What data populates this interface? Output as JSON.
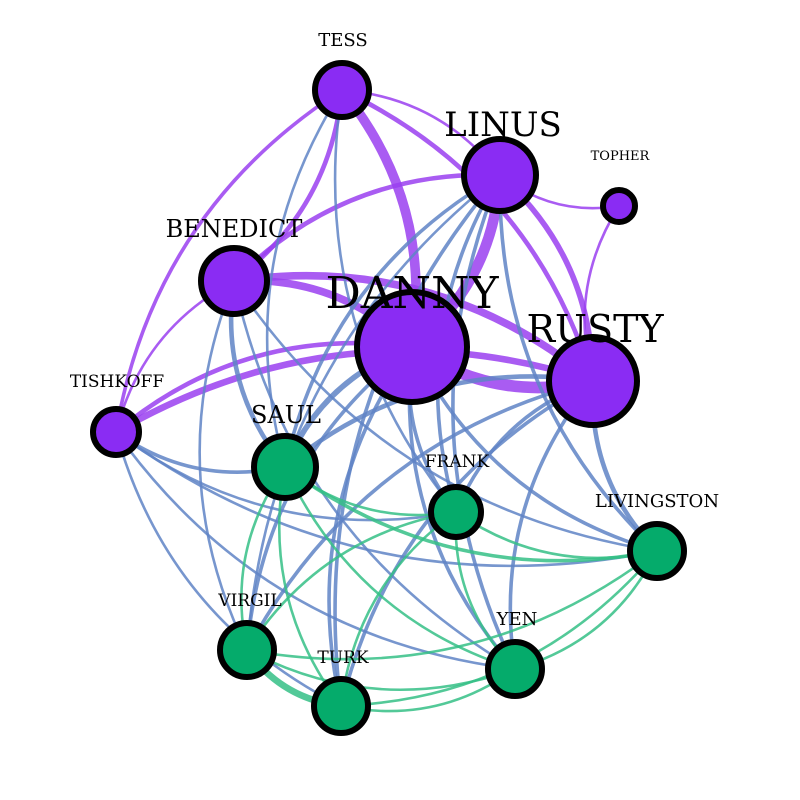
{
  "colors": {
    "group_a": "#8a2cf3",
    "group_b": "#05ab6b",
    "edge_a": "#9a40f0",
    "edge_b": "#35bf86",
    "edge_mixed": "#5f84c6",
    "outline": "#000000"
  },
  "nodes": [
    {
      "id": "danny",
      "label": "DANNY",
      "group": "a"
    },
    {
      "id": "rusty",
      "label": "RUSTY",
      "group": "a"
    },
    {
      "id": "linus",
      "label": "LINUS",
      "group": "a"
    },
    {
      "id": "benedict",
      "label": "BENEDICT",
      "group": "a"
    },
    {
      "id": "tess",
      "label": "TESS",
      "group": "a"
    },
    {
      "id": "tishkoff",
      "label": "TISHKOFF",
      "group": "a"
    },
    {
      "id": "topher",
      "label": "TOPHER",
      "group": "a"
    },
    {
      "id": "saul",
      "label": "SAUL",
      "group": "b"
    },
    {
      "id": "frank",
      "label": "FRANK",
      "group": "b"
    },
    {
      "id": "livingston",
      "label": "LIVINGSTON",
      "group": "b"
    },
    {
      "id": "virgil",
      "label": "VIRGIL",
      "group": "b"
    },
    {
      "id": "turk",
      "label": "TURK",
      "group": "b"
    },
    {
      "id": "yen",
      "label": "YEN",
      "group": "b"
    }
  ],
  "edges": [
    {
      "source": "danny",
      "target": "rusty",
      "weight": 10
    },
    {
      "source": "danny",
      "target": "linus",
      "weight": 9
    },
    {
      "source": "danny",
      "target": "tess",
      "weight": 8
    },
    {
      "source": "danny",
      "target": "benedict",
      "weight": 6
    },
    {
      "source": "danny",
      "target": "tishkoff",
      "weight": 3
    },
    {
      "source": "danny",
      "target": "saul",
      "weight": 4
    },
    {
      "source": "danny",
      "target": "frank",
      "weight": 2
    },
    {
      "source": "danny",
      "target": "livingston",
      "weight": 2
    },
    {
      "source": "danny",
      "target": "virgil",
      "weight": 2
    },
    {
      "source": "danny",
      "target": "turk",
      "weight": 2
    },
    {
      "source": "danny",
      "target": "yen",
      "weight": 2
    },
    {
      "source": "rusty",
      "target": "linus",
      "weight": 4
    },
    {
      "source": "rusty",
      "target": "benedict",
      "weight": 6
    },
    {
      "source": "rusty",
      "target": "tess",
      "weight": 3
    },
    {
      "source": "rusty",
      "target": "tishkoff",
      "weight": 5
    },
    {
      "source": "rusty",
      "target": "saul",
      "weight": 3
    },
    {
      "source": "rusty",
      "target": "frank",
      "weight": 2
    },
    {
      "source": "rusty",
      "target": "livingston",
      "weight": 3
    },
    {
      "source": "rusty",
      "target": "virgil",
      "weight": 2
    },
    {
      "source": "rusty",
      "target": "turk",
      "weight": 2
    },
    {
      "source": "rusty",
      "target": "yen",
      "weight": 2
    },
    {
      "source": "linus",
      "target": "benedict",
      "weight": 3
    },
    {
      "source": "linus",
      "target": "topher",
      "weight": 1
    },
    {
      "source": "linus",
      "target": "tess",
      "weight": 1
    },
    {
      "source": "linus",
      "target": "saul",
      "weight": 2
    },
    {
      "source": "linus",
      "target": "frank",
      "weight": 2
    },
    {
      "source": "linus",
      "target": "livingston",
      "weight": 2
    },
    {
      "source": "linus",
      "target": "virgil",
      "weight": 1
    },
    {
      "source": "linus",
      "target": "turk",
      "weight": 2
    },
    {
      "source": "linus",
      "target": "yen",
      "weight": 2
    },
    {
      "source": "benedict",
      "target": "tess",
      "weight": 3
    },
    {
      "source": "benedict",
      "target": "tishkoff",
      "weight": 1
    },
    {
      "source": "benedict",
      "target": "saul",
      "weight": 3
    },
    {
      "source": "benedict",
      "target": "livingston",
      "weight": 1
    },
    {
      "source": "benedict",
      "target": "virgil",
      "weight": 1
    },
    {
      "source": "benedict",
      "target": "yen",
      "weight": 1
    },
    {
      "source": "tess",
      "target": "tishkoff",
      "weight": 2
    },
    {
      "source": "tess",
      "target": "saul",
      "weight": 1
    },
    {
      "source": "tess",
      "target": "frank",
      "weight": 1
    },
    {
      "source": "topher",
      "target": "rusty",
      "weight": 1
    },
    {
      "source": "tishkoff",
      "target": "saul",
      "weight": 2
    },
    {
      "source": "tishkoff",
      "target": "frank",
      "weight": 1
    },
    {
      "source": "tishkoff",
      "target": "livingston",
      "weight": 1
    },
    {
      "source": "tishkoff",
      "target": "yen",
      "weight": 1
    },
    {
      "source": "tishkoff",
      "target": "turk",
      "weight": 1
    },
    {
      "source": "saul",
      "target": "frank",
      "weight": 1
    },
    {
      "source": "saul",
      "target": "livingston",
      "weight": 2
    },
    {
      "source": "saul",
      "target": "virgil",
      "weight": 1
    },
    {
      "source": "saul",
      "target": "turk",
      "weight": 1
    },
    {
      "source": "saul",
      "target": "yen",
      "weight": 1
    },
    {
      "source": "frank",
      "target": "livingston",
      "weight": 1
    },
    {
      "source": "frank",
      "target": "virgil",
      "weight": 1
    },
    {
      "source": "frank",
      "target": "yen",
      "weight": 1
    },
    {
      "source": "frank",
      "target": "turk",
      "weight": 1
    },
    {
      "source": "virgil",
      "target": "turk",
      "weight": 5
    },
    {
      "source": "virgil",
      "target": "yen",
      "weight": 1
    },
    {
      "source": "virgil",
      "target": "livingston",
      "weight": 1
    },
    {
      "source": "turk",
      "target": "yen",
      "weight": 1
    },
    {
      "source": "turk",
      "target": "livingston",
      "weight": 1
    },
    {
      "source": "yen",
      "target": "livingston",
      "weight": 1
    }
  ]
}
